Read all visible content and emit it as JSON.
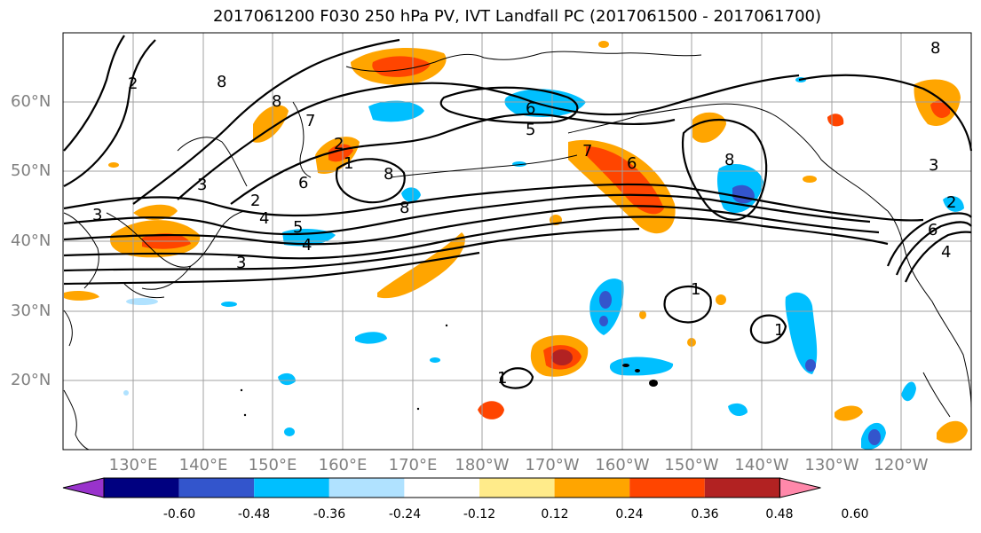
{
  "title": "2017061200 F030 250 hPa PV, IVT Landfall PC (2017061500 - 2017061700)",
  "lat_labels": [
    "60°N",
    "50°N",
    "40°N",
    "30°N",
    "20°N"
  ],
  "lon_labels": [
    "130°E",
    "140°E",
    "150°E",
    "160°E",
    "170°E",
    "180°W",
    "170°W",
    "160°W",
    "150°W",
    "140°W",
    "130°W",
    "120°W"
  ],
  "map": {
    "projection": "PlateCarree",
    "lon_range": [
      121,
      251
    ],
    "lat_range": [
      10,
      70
    ],
    "gridline_color": "#a0a0a0",
    "contour_color": "#000000",
    "pv_contour_labels": [
      "2",
      "8",
      "8",
      "7",
      "1",
      "2",
      "5",
      "3",
      "8",
      "6",
      "8",
      "3",
      "2",
      "4",
      "5",
      "3",
      "4",
      "6",
      "7",
      "8",
      "6",
      "1",
      "1",
      "1",
      "3",
      "2",
      "8",
      "6",
      "4"
    ]
  },
  "colorbar": {
    "labels": [
      "-0.60",
      "-0.48",
      "-0.36",
      "-0.24",
      "-0.12",
      "0.12",
      "0.24",
      "0.36",
      "0.48",
      "0.60"
    ],
    "colors": [
      "#9933cc",
      "#000080",
      "#3355cc",
      "#00bfff",
      "#b0e2ff",
      "#ffffff",
      "#ffeb8a",
      "#ffa500",
      "#ff4500",
      "#b22222",
      "#ff88aa"
    ],
    "extend": "both"
  }
}
